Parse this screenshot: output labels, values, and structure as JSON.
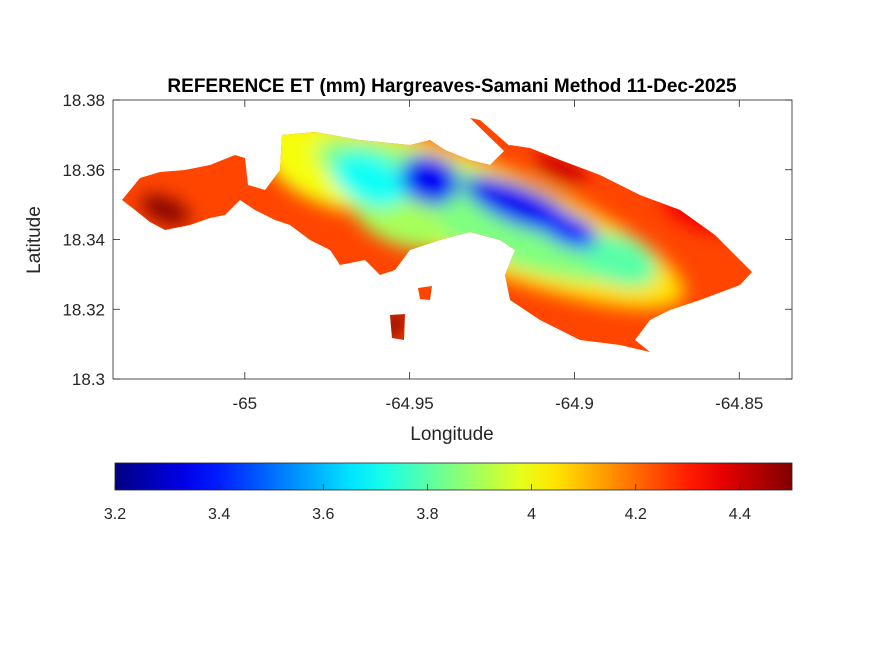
{
  "chart_data": {
    "type": "heatmap",
    "title": "REFERENCE ET (mm) Hargreaves-Samani Method  11-Dec-2025",
    "xlabel": "Longitude",
    "ylabel": "Latitude",
    "xlim": [
      -65.04,
      -64.834
    ],
    "ylim": [
      18.3,
      18.38
    ],
    "xticks": [
      -65,
      -64.95,
      -64.9,
      -64.85
    ],
    "xtick_labels": [
      "-65",
      "-64.95",
      "-64.9",
      "-64.85"
    ],
    "yticks": [
      18.3,
      18.32,
      18.34,
      18.36,
      18.38
    ],
    "ytick_labels": [
      "18.3",
      "18.32",
      "18.34",
      "18.36",
      "18.38"
    ],
    "colormap": "jet",
    "clim": [
      3.2,
      4.5
    ],
    "colorbar": {
      "location": "bottom",
      "ticks": [
        3.2,
        3.4,
        3.6,
        3.8,
        4,
        4.2,
        4.4
      ],
      "tick_labels": [
        "3.2",
        "3.4",
        "3.6",
        "3.8",
        "4",
        "4.2",
        "4.4"
      ]
    },
    "base_value": 4.25,
    "field": [
      {
        "lon": -64.9318,
        "lat": 18.3485,
        "rlon": 0.07,
        "rlat": 0.015,
        "value": 4.05
      },
      {
        "lon": -64.9742,
        "lat": 18.3599,
        "rlon": 0.021,
        "rlat": 0.01,
        "value": 4.0
      },
      {
        "lon": -64.9318,
        "lat": 18.3485,
        "rlon": 0.05,
        "rlat": 0.011,
        "value": 3.85
      },
      {
        "lon": -64.953,
        "lat": 18.3456,
        "rlon": 0.015,
        "rlat": 0.007,
        "value": 3.9
      },
      {
        "lon": -64.9621,
        "lat": 18.3571,
        "rlon": 0.012,
        "rlat": 0.007,
        "value": 3.7
      },
      {
        "lon": -64.8864,
        "lat": 18.3341,
        "rlon": 0.012,
        "rlat": 0.007,
        "value": 3.8
      },
      {
        "lon": -64.9439,
        "lat": 18.3571,
        "rlon": 0.009,
        "rlat": 0.007,
        "value": 3.35
      },
      {
        "lon": -64.9167,
        "lat": 18.3499,
        "rlon": 0.018,
        "rlat": 0.0055,
        "value": 3.35
      },
      {
        "lon": -64.9015,
        "lat": 18.3427,
        "rlon": 0.009,
        "rlat": 0.0045,
        "value": 3.4
      },
      {
        "lon": -65.0242,
        "lat": 18.3485,
        "rlon": 0.008,
        "rlat": 0.0035,
        "value": 4.5
      },
      {
        "lon": -64.9045,
        "lat": 18.3599,
        "rlon": 0.009,
        "rlat": 0.0035,
        "value": 4.4
      },
      {
        "lon": -64.8621,
        "lat": 18.3485,
        "rlon": 0.012,
        "rlat": 0.0055,
        "value": 4.35
      },
      {
        "lon": -64.9545,
        "lat": 18.3155,
        "rlon": 0.003,
        "rlat": 0.005,
        "value": 4.5
      }
    ]
  }
}
